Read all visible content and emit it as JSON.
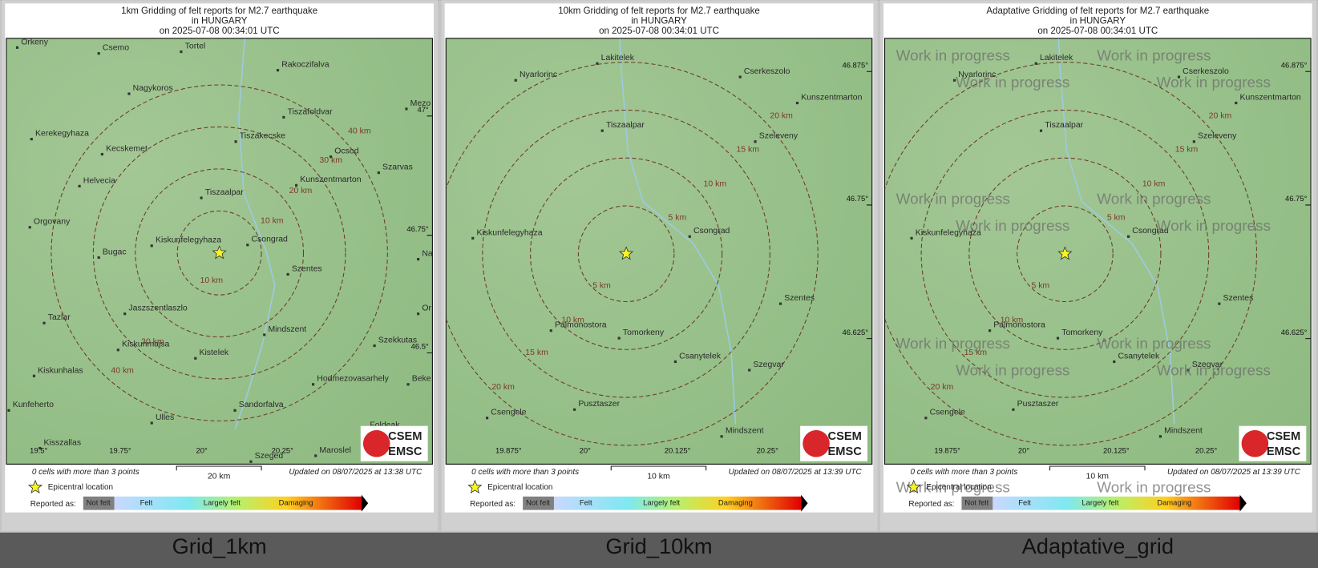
{
  "panels": [
    {
      "title": [
        "1km Gridding of felt reports for M2.7 earthquake",
        "in HUNGARY",
        "on  2025-07-08 00:34:01 UTC"
      ],
      "towns": [
        "Orkeny",
        "Csemo",
        "Tortel",
        "Rakoczifalva",
        "Nagykoros",
        "Tiszafoldvar",
        "Kerekegyhaza",
        "Tiszakecske",
        "Kecskemet",
        "Ocsod",
        "Szarvas",
        "Helvecia",
        "Kunszentmarton",
        "Tiszaalpar",
        "Orgovany",
        "Kiskunfelegyhaza",
        "Csongrad",
        "Bugac",
        "Szentes",
        "Jaszszentlaszlo",
        "Tazlar",
        "Mindszent",
        "Kiskunmajsa",
        "Kistelek",
        "Szekkutas",
        "Kiskunhalas",
        "Hodmezovasarhely",
        "Beke",
        "Kunfeherto",
        "Sandorfalva",
        "Ulles",
        "Kisszallas",
        "Szeged",
        "Maroslel",
        "Mezo",
        "Na",
        "Or",
        "Foldeak"
      ],
      "distance_labels": [
        "40 km",
        "30 km",
        "20 km",
        "10 km",
        "10 km",
        "30 km",
        "40 km"
      ],
      "lat_labels": [
        "47°",
        "46.75°",
        "46.5°"
      ],
      "lon_labels": [
        "19.5°",
        "19.75°",
        "20°",
        "20.25°"
      ],
      "scale_label": "20 km",
      "cells_note": "0 cells with more than 3 points",
      "updated": "Updated on 08/07/2025 at 13:38 UTC",
      "caption": "Grid_1km"
    },
    {
      "title": [
        "10km Gridding of felt reports for M2.7 earthquake",
        "in HUNGARY",
        "on  2025-07-08 00:34:01 UTC"
      ],
      "towns": [
        "Lakitelek",
        "Nyarlorinc",
        "Cserkeszolo",
        "Kunszentmarton",
        "Tiszaalpar",
        "Szeleveny",
        "Kiskunfelegyhaza",
        "Csongrad",
        "Szentes",
        "Palmonostora",
        "Tomorkeny",
        "Csanytelek",
        "Szegvar",
        "Pusztaszer",
        "Csengele",
        "Mindszent"
      ],
      "distance_labels": [
        "20 km",
        "15 km",
        "10 km",
        "5 km",
        "5 km",
        "10 km",
        "15 km",
        "20 km"
      ],
      "lat_labels": [
        "46.875°",
        "46.75°",
        "46.625°"
      ],
      "lon_labels": [
        "19.875°",
        "20°",
        "20.125°",
        "20.25°"
      ],
      "scale_label": "10 km",
      "cells_note": "0 cells with more than 3 points",
      "updated": "Updated on 08/07/2025 at 13:39 UTC",
      "caption": "Grid_10km"
    },
    {
      "title": [
        "Adaptative Gridding of felt reports for M2.7 earthquake",
        "in HUNGARY",
        "on  2025-07-08 00:34:01 UTC"
      ],
      "towns": [
        "Lakitelek",
        "Nyarlorinc",
        "Cserkeszolo",
        "Kunszentmarton",
        "Tiszaalpar",
        "Szeleveny",
        "Kiskunfelegyhaza",
        "Csongrad",
        "Szentes",
        "Palmonostora",
        "Tomorkeny",
        "Csanytelek",
        "Szegvar",
        "Pusztaszer",
        "Csengele",
        "Mindszent"
      ],
      "distance_labels": [
        "20 km",
        "15 km",
        "10 km",
        "5 km",
        "5 km",
        "10 km",
        "15 km",
        "20 km"
      ],
      "lat_labels": [
        "46.875°",
        "46.75°",
        "46.625°"
      ],
      "lon_labels": [
        "19.875°",
        "20°",
        "20.125°",
        "20.25°"
      ],
      "scale_label": "10 km",
      "cells_note": "0 cells with more than 3 points",
      "updated": "Updated on 08/07/2025 at 13:39 UTC",
      "caption": "Adaptative_grid",
      "watermark": "Work in progress"
    }
  ],
  "legend": {
    "epicenter": "Epicentral location",
    "reported_as": "Reported as:",
    "levels": [
      "Not felt",
      "Felt",
      "Largely felt",
      "Damaging"
    ]
  },
  "logo": [
    "CSEM",
    "EMSC"
  ]
}
